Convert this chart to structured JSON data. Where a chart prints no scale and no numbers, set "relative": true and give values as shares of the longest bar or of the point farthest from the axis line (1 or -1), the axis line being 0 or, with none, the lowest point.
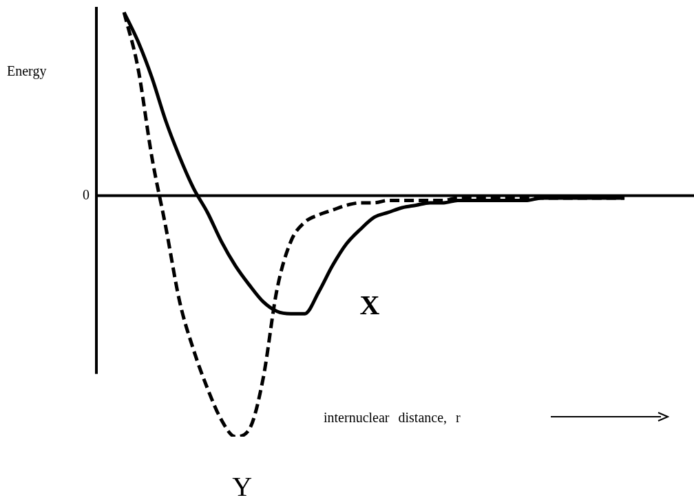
{
  "chart_data": {
    "type": "line",
    "relative": true,
    "xlabel": "internuclear distance, r",
    "annotations": [
      "Energy",
      "0"
    ],
    "legend": false,
    "marker": "none",
    "categories": [
      null,
      null,
      null,
      null,
      null,
      null,
      null,
      null,
      null,
      null,
      null,
      null,
      null,
      null,
      null,
      null,
      null,
      null,
      null,
      null,
      null,
      null,
      null,
      null,
      null,
      null,
      null,
      null,
      null,
      null,
      null,
      null,
      null,
      null,
      null,
      null,
      null
    ],
    "series": [
      {
        "name": "X",
        "color": "#000000",
        "line_style": "solid",
        "values": [
          0.76,
          0.64,
          0.49,
          0.31,
          0.16,
          0.03,
          -0.07,
          -0.19,
          -0.29,
          -0.37,
          -0.44,
          -0.48,
          -0.49,
          -0.49,
          -0.4,
          -0.29,
          -0.2,
          -0.14,
          -0.09,
          -0.07,
          -0.05,
          -0.04,
          -0.03,
          -0.03,
          -0.02,
          -0.02,
          -0.02,
          -0.02,
          -0.02,
          -0.02,
          -0.01,
          -0.01,
          -0.01,
          -0.01,
          -0.01,
          -0.01,
          -0.01
        ]
      },
      {
        "name": "Y",
        "color": "#000000",
        "line_style": "dashed",
        "values": [
          0.76,
          0.53,
          0.16,
          -0.13,
          -0.44,
          -0.64,
          -0.8,
          -0.93,
          -1,
          -0.97,
          -0.76,
          -0.39,
          -0.19,
          -0.11,
          -0.08,
          -0.06,
          -0.04,
          -0.03,
          -0.03,
          -0.02,
          -0.02,
          -0.02,
          -0.02,
          -0.02,
          -0.01,
          -0.01,
          -0.01,
          -0.01,
          -0.01,
          -0.01,
          -0.01,
          -0.01,
          -0.01,
          -0.01,
          -0.01,
          -0.01,
          -0.01
        ]
      }
    ]
  }
}
